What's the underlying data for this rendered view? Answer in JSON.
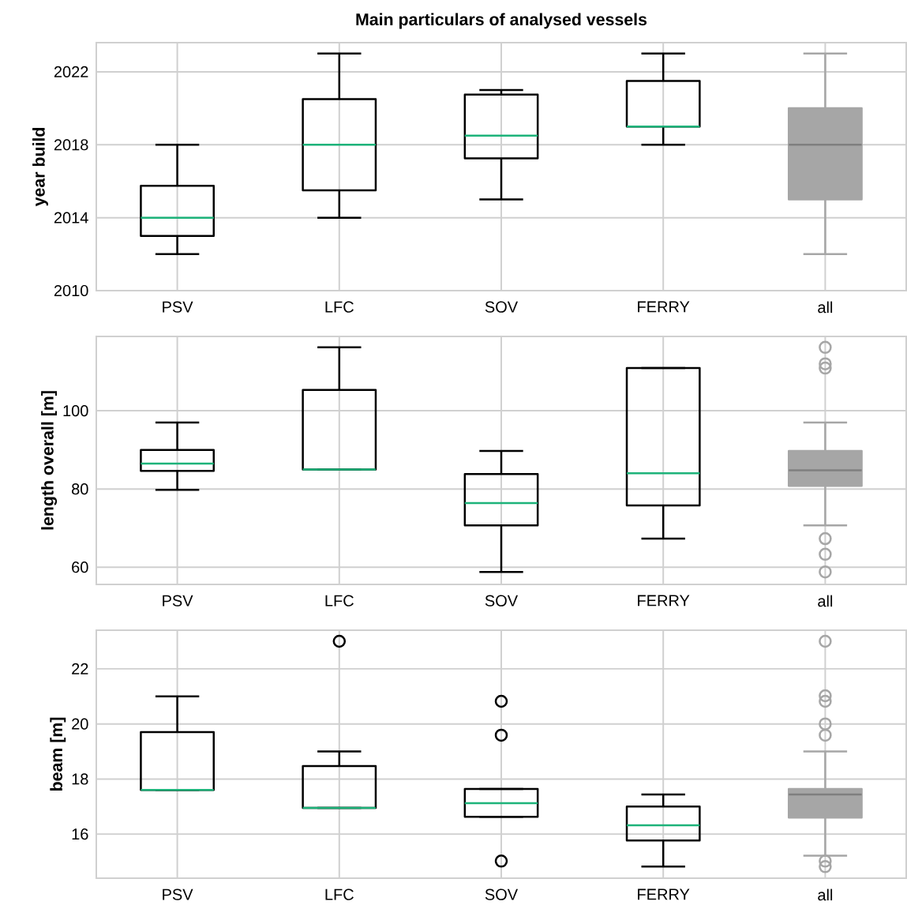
{
  "chart_data": [
    {
      "type": "box",
      "title": "Main particulars of analysed vessels",
      "ylabel": "year build",
      "categories": [
        "PSV",
        "LFC",
        "SOV",
        "FERRY",
        "all"
      ],
      "ylim": [
        2010,
        2023.6
      ],
      "yticks": [
        2010,
        2014,
        2018,
        2022
      ],
      "grid": true,
      "series": [
        {
          "color": "#000000",
          "boxes": [
            {
              "low": 2012,
              "q1": 2013,
              "median": 2014,
              "q3": 2015.75,
              "high": 2018
            },
            {
              "low": 2014,
              "q1": 2015.5,
              "median": 2018,
              "q3": 2020.5,
              "high": 2023
            },
            {
              "low": 2015,
              "q1": 2017.25,
              "median": 2018.5,
              "q3": 2020.75,
              "high": 2021
            },
            {
              "low": 2018,
              "q1": 2019,
              "median": 2019,
              "q3": 2021.5,
              "high": 2023
            },
            null
          ]
        },
        {
          "color": "#a6a6a6",
          "boxes": [
            null,
            null,
            null,
            null,
            {
              "low": 2012,
              "q1": 2015,
              "median": 2018,
              "q3": 2020,
              "high": 2023
            }
          ]
        }
      ]
    },
    {
      "type": "box",
      "ylabel": "length overall [m]",
      "categories": [
        "PSV",
        "LFC",
        "SOV",
        "FERRY",
        "all"
      ],
      "ylim": [
        55.6,
        119
      ],
      "yticks": [
        60,
        80,
        100
      ],
      "grid": true,
      "series": [
        {
          "color": "#000000",
          "boxes": [
            {
              "low": 79.8,
              "q1": 84.6,
              "median": 86.5,
              "q3": 90,
              "high": 97
            },
            {
              "low": 85,
              "q1": 85,
              "median": 85,
              "q3": 105.3,
              "high": 116.2
            },
            {
              "low": 58.8,
              "q1": 70.7,
              "median": 76.4,
              "q3": 83.8,
              "high": 89.7
            },
            {
              "low": 67.3,
              "q1": 75.8,
              "median": 84,
              "q3": 110.9,
              "high": 110.9
            },
            null
          ]
        },
        {
          "color": "#a6a6a6",
          "boxes": [
            null,
            null,
            null,
            null,
            {
              "low": 70.7,
              "q1": 80.8,
              "median": 84.8,
              "q3": 89.7,
              "high": 97,
              "outliers": [
                116.2,
                112,
                110.9,
                67.3,
                63.3,
                58.8
              ]
            }
          ]
        }
      ]
    },
    {
      "type": "box",
      "ylabel": "beam [m]",
      "categories": [
        "PSV",
        "LFC",
        "SOV",
        "FERRY",
        "all"
      ],
      "ylim": [
        14.4,
        23.4
      ],
      "yticks": [
        16,
        18,
        20,
        22
      ],
      "grid": true,
      "series": [
        {
          "color": "#000000",
          "boxes": [
            {
              "low": 17.6,
              "q1": 17.6,
              "median": 17.6,
              "q3": 19.7,
              "high": 21
            },
            {
              "low": 16.95,
              "q1": 16.95,
              "median": 16.95,
              "q3": 18.47,
              "high": 19,
              "outliers": [
                23
              ]
            },
            {
              "low": 16.63,
              "q1": 16.63,
              "median": 17.12,
              "q3": 17.64,
              "high": 17.64,
              "outliers": [
                20.82,
                19.59,
                15.02
              ]
            },
            {
              "low": 14.82,
              "q1": 15.77,
              "median": 16.32,
              "q3": 17,
              "high": 17.44
            },
            null
          ]
        },
        {
          "color": "#a6a6a6",
          "boxes": [
            null,
            null,
            null,
            null,
            {
              "low": 15.22,
              "q1": 16.6,
              "median": 17.44,
              "q3": 17.64,
              "high": 19,
              "outliers": [
                23,
                21.02,
                20.82,
                20,
                19.59,
                15.02,
                14.82
              ]
            }
          ]
        }
      ]
    }
  ]
}
